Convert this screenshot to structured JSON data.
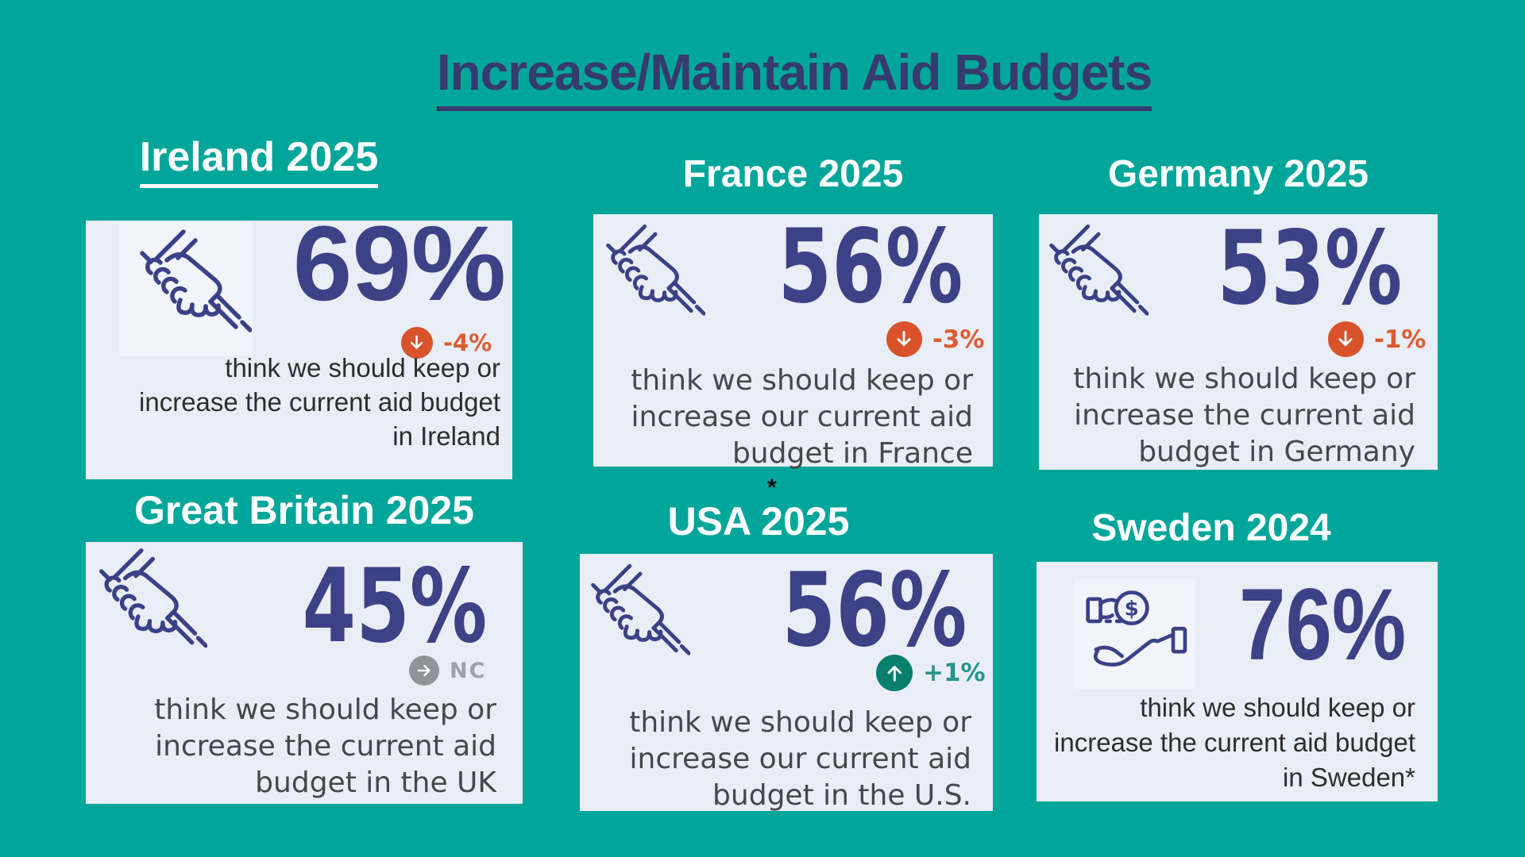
{
  "page": {
    "title": "Increase/Maintain Aid Budgets",
    "background_color": "#00A69A",
    "title_color": "#363A6E"
  },
  "chart_data": {
    "type": "table",
    "title": "Increase/Maintain Aid Budgets",
    "categories": [
      "Ireland 2025",
      "France 2025",
      "Germany 2025",
      "Great Britain 2025",
      "USA 2025",
      "Sweden 2024"
    ],
    "values": [
      69,
      56,
      53,
      45,
      56,
      76
    ],
    "unit": "%",
    "change_vs_previous": [
      "-4%",
      "-3%",
      "-1%",
      "NC",
      "+1%",
      null
    ]
  },
  "colors": {
    "value_text": "#3D4186",
    "decrease_circle": "#D8532B",
    "decrease_text": "#DC5C31",
    "increase_circle": "#067F6F",
    "increase_text": "#27948A",
    "no_change_circle": "#909499",
    "no_change_text": "#9DA2AA",
    "card_background": "#E9EDF6",
    "icon_stroke": "#3A4187"
  },
  "cards": [
    {
      "country": "ireland",
      "title": "Ireland 2025",
      "value": "69%",
      "change": {
        "label": "-4%",
        "direction": "down"
      },
      "description_lines": [
        "think we should keep or",
        "increase the current aid budget",
        "in Ireland"
      ],
      "icon": "helping-hands"
    },
    {
      "country": "france",
      "title": "France 2025",
      "value": "56%",
      "change": {
        "label": "-3%",
        "direction": "down"
      },
      "description_lines": [
        "think we should keep or",
        "increase our current aid",
        "budget in France"
      ],
      "icon": "helping-hands"
    },
    {
      "country": "germany",
      "title": "Germany 2025",
      "value": "53%",
      "change": {
        "label": "-1%",
        "direction": "down"
      },
      "description_lines": [
        "think we should keep or",
        "increase the current aid",
        "budget in Germany"
      ],
      "icon": "helping-hands"
    },
    {
      "country": "great-britain",
      "title": "Great Britain 2025",
      "value": "45%",
      "change": {
        "label": "NC",
        "direction": "no-change"
      },
      "description_lines": [
        "think we should keep or",
        "increase the current aid",
        "budget in the UK"
      ],
      "icon": "helping-hands"
    },
    {
      "country": "usa",
      "title": "USA 2025",
      "footnote_marker": "*",
      "value": "56%",
      "change": {
        "label": "+1%",
        "direction": "up"
      },
      "description_lines": [
        "think we should keep or",
        "increase our current aid",
        "budget in the U.S."
      ],
      "icon": "helping-hands"
    },
    {
      "country": "sweden",
      "title": "Sweden 2024",
      "value": "76%",
      "change": null,
      "description_lines": [
        "think we should keep or",
        "increase the current aid budget",
        "in Sweden*"
      ],
      "icon": "hand-coin"
    }
  ]
}
